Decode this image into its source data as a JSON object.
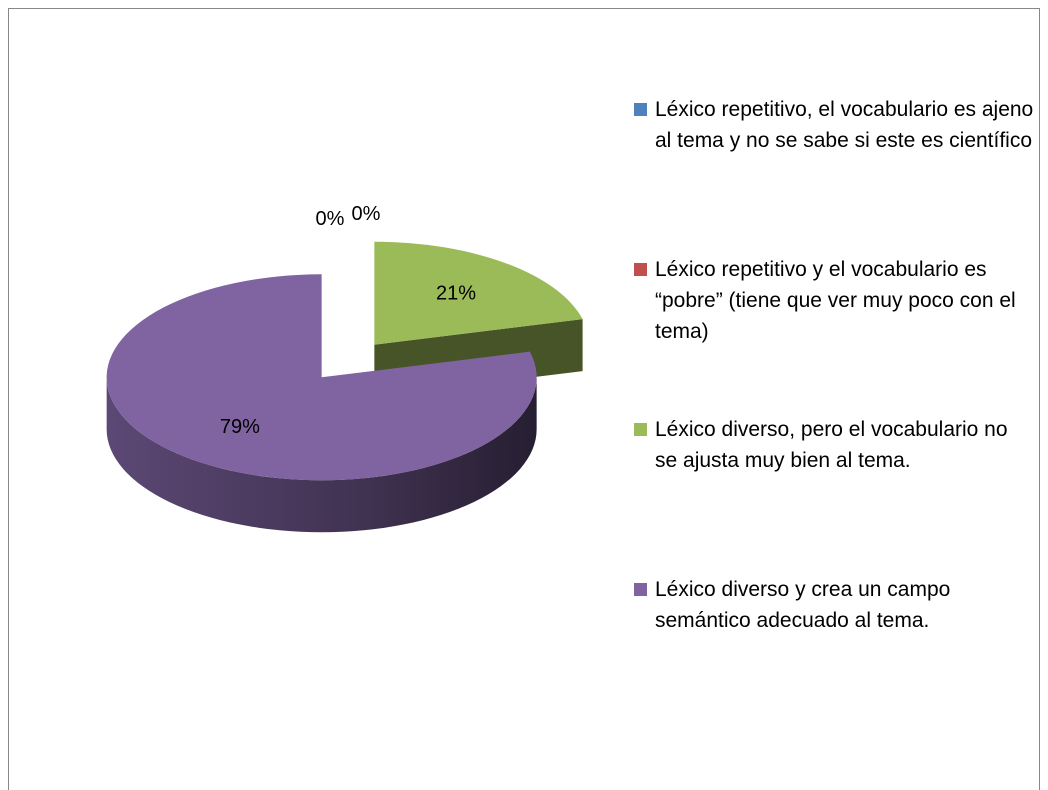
{
  "chart_data": {
    "type": "pie3d",
    "categories": [
      "Léxico repetitivo, el vocabulario es ajeno al tema y no se sabe si este es científico",
      "Léxico repetitivo y el vocabulario es “pobre” (tiene que ver muy poco con el tema)",
      "Léxico diverso, pero el vocabulario no se ajusta muy bien al tema.",
      "Léxico diverso y crea un campo semántico adecuado al tema."
    ],
    "values": [
      0,
      0,
      21,
      79
    ],
    "value_labels": [
      "0%",
      "0%",
      "21%",
      "79%"
    ],
    "colors": [
      "#4f81bd",
      "#c0504d",
      "#9bbb59",
      "#8064a2"
    ],
    "legend": "right"
  }
}
